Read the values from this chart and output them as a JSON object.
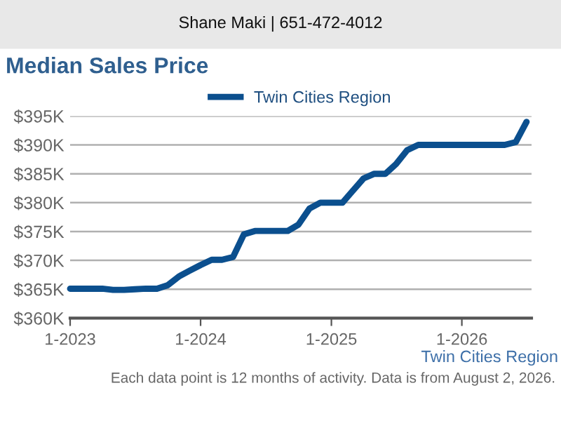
{
  "chart_data": {
    "type": "line",
    "title": "Median Sales Price",
    "x": [
      "2023-01",
      "2023-02",
      "2023-03",
      "2023-04",
      "2023-05",
      "2023-06",
      "2023-07",
      "2023-08",
      "2023-09",
      "2023-10",
      "2023-11",
      "2023-12",
      "2024-01",
      "2024-02",
      "2024-03",
      "2024-04",
      "2024-05",
      "2024-06",
      "2024-07",
      "2024-08",
      "2024-09",
      "2024-10",
      "2024-11",
      "2024-12",
      "2025-01",
      "2025-02",
      "2025-03",
      "2025-04",
      "2025-05",
      "2025-06",
      "2025-07",
      "2025-08",
      "2025-09",
      "2025-10",
      "2025-11",
      "2025-12",
      "2026-01",
      "2026-02",
      "2026-03",
      "2026-04",
      "2026-05",
      "2026-06",
      "2026-07"
    ],
    "series": [
      {
        "name": "Twin Cities Region",
        "color": "#0b4f8e",
        "values": [
          365.1,
          365.1,
          365.1,
          365.1,
          364.9,
          364.9,
          365.0,
          365.1,
          365.1,
          365.7,
          367.2,
          368.2,
          369.2,
          370.1,
          370.1,
          370.6,
          374.5,
          375.1,
          375.1,
          375.1,
          375.1,
          376.2,
          379.0,
          380.0,
          380.0,
          380.0,
          382.0,
          384.2,
          385.0,
          385.0,
          386.7,
          389.1,
          390.0,
          390.0,
          390.0,
          390.0,
          390.0,
          390.0,
          390.0,
          390.0,
          390.0,
          390.5,
          394.0
        ]
      }
    ],
    "xlim": [
      "2023-01",
      "2026-07-15"
    ],
    "xticks": [
      {
        "value": "2023-01",
        "label": "1-2023"
      },
      {
        "value": "2024-01",
        "label": "1-2024"
      },
      {
        "value": "2025-01",
        "label": "1-2025"
      },
      {
        "value": "2026-01",
        "label": "1-2026"
      }
    ],
    "ylim": [
      360,
      395
    ],
    "yticks": [
      {
        "value": 360,
        "label": "$360K"
      },
      {
        "value": 365,
        "label": "$365K"
      },
      {
        "value": 370,
        "label": "$370K"
      },
      {
        "value": 375,
        "label": "$375K"
      },
      {
        "value": 380,
        "label": "$380K"
      },
      {
        "value": 385,
        "label": "$385K"
      },
      {
        "value": 390,
        "label": "$390K"
      },
      {
        "value": 395,
        "label": "$395K"
      }
    ],
    "grid": "y",
    "legend": "top",
    "marker": "none",
    "line_style": "solid",
    "annotations": [
      "Shane Maki | 651-472-4012",
      "Twin Cities Region",
      "Each data point is 12 months of activity. Data is from August 2, 2026."
    ]
  }
}
